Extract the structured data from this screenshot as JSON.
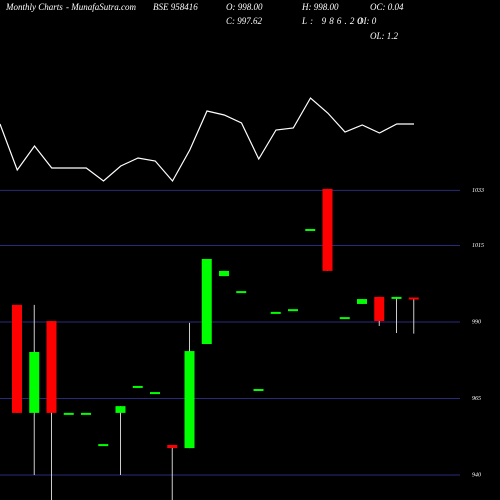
{
  "header": {
    "title": "Monthly Charts",
    "site": "- MunafaSutra.com",
    "symbol": "BSE 958416",
    "open": "O: 998.00",
    "high": "H: 998.00",
    "oc": "OC: 0.04",
    "close": "C: 997.62",
    "low": "L: 986.20",
    "oi": "OI: 0",
    "ol": "OL: 1.2"
  },
  "chart_data": [
    {
      "type": "candlestick",
      "up_color": "#00ff00",
      "down_color": "#ff0000",
      "grid": true,
      "ylim": [
        930,
        1050
      ],
      "yticks": [
        940,
        965,
        990,
        1015,
        1033
      ],
      "open": [
        995.6,
        960.3,
        990.3,
        960.3,
        960.3,
        950.1,
        960.3,
        969.1,
        967.1,
        949.8,
        948.8,
        982.8,
        1005.0,
        1000.1,
        968.1,
        993.3,
        994.2,
        1020.4,
        1033.5,
        991.6,
        995.9,
        998.2,
        998.2,
        998.0
      ],
      "high": [
        995.6,
        995.6,
        990.3,
        960.3,
        960.3,
        950.1,
        962.5,
        969.1,
        967.1,
        949.8,
        989.7,
        1010.6,
        1006.7,
        1000.1,
        968.1,
        993.3,
        994.2,
        1020.4,
        1033.5,
        991.6,
        997.5,
        998.2,
        998.2,
        998.0
      ],
      "low": [
        960.3,
        940.0,
        931.8,
        960.3,
        960.3,
        950.1,
        940.0,
        969.1,
        967.1,
        931.8,
        948.8,
        982.8,
        1005.0,
        1000.1,
        968.1,
        993.3,
        994.2,
        1020.4,
        1006.7,
        991.6,
        995.9,
        988.7,
        986.4,
        986.2
      ],
      "close": [
        960.3,
        980.2,
        960.3,
        960.3,
        960.3,
        950.1,
        962.5,
        969.1,
        967.1,
        948.8,
        980.5,
        1010.6,
        1006.7,
        1000.1,
        968.1,
        993.3,
        994.2,
        1020.4,
        1006.7,
        991.6,
        997.5,
        990.3,
        998.2,
        997.6
      ]
    },
    {
      "type": "line",
      "color": "#ffffff",
      "ylim": [
        0,
        100
      ],
      "values": [
        66,
        20,
        44,
        22,
        22,
        22,
        9,
        24,
        32,
        29,
        9,
        40,
        79,
        75,
        67,
        31,
        60,
        62,
        92,
        77,
        58,
        65,
        57,
        66,
        66
      ]
    }
  ]
}
